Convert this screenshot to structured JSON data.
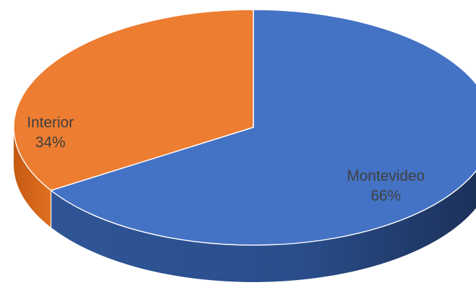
{
  "chart_data": {
    "type": "pie",
    "variant": "3d",
    "title": "",
    "categories": [
      "Montevideo",
      "Interior"
    ],
    "values": [
      66,
      34
    ],
    "data_labels": [
      {
        "category": "Montevideo",
        "percent": "66%"
      },
      {
        "category": "Interior",
        "percent": "34%"
      }
    ],
    "colors": {
      "Montevideo": "#4472C4",
      "Interior": "#ED7D31"
    },
    "legend": "none"
  }
}
